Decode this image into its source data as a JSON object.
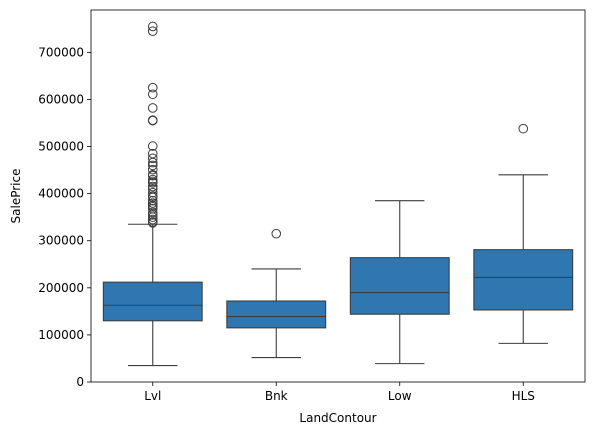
{
  "chart_data": {
    "type": "box",
    "title": "",
    "xlabel": "LandContour",
    "ylabel": "SalePrice",
    "ylim": [
      0,
      790000
    ],
    "yticks": [
      0,
      100000,
      200000,
      300000,
      400000,
      500000,
      600000,
      700000
    ],
    "grid": false,
    "box_color": "#2e77b1",
    "line_color": "#3d3d3d",
    "categories": [
      "Lvl",
      "Bnk",
      "Low",
      "HLS"
    ],
    "boxes": [
      {
        "category": "Lvl",
        "whisker_low": 35000,
        "q1": 130000,
        "median": 163000,
        "q3": 212000,
        "whisker_high": 335000,
        "outliers": [
          755000,
          745000,
          625000,
          611000,
          582000,
          556000,
          555000,
          501000,
          485000,
          475000,
          466000,
          460000,
          451000,
          440000,
          438000,
          430000,
          426000,
          423000,
          415000,
          410000,
          402000,
          395000,
          392000,
          385000,
          380000,
          375000,
          372000,
          368000,
          360000,
          355000,
          350000,
          345000,
          340000,
          338000
        ]
      },
      {
        "category": "Bnk",
        "whisker_low": 52000,
        "q1": 115000,
        "median": 139000,
        "q3": 172000,
        "whisker_high": 240000,
        "outliers": [
          315000
        ]
      },
      {
        "category": "Low",
        "whisker_low": 39000,
        "q1": 144000,
        "median": 190000,
        "q3": 264000,
        "whisker_high": 385000,
        "outliers": []
      },
      {
        "category": "HLS",
        "whisker_low": 82000,
        "q1": 153000,
        "median": 222000,
        "q3": 281000,
        "whisker_high": 440000,
        "outliers": [
          538000
        ]
      }
    ]
  }
}
